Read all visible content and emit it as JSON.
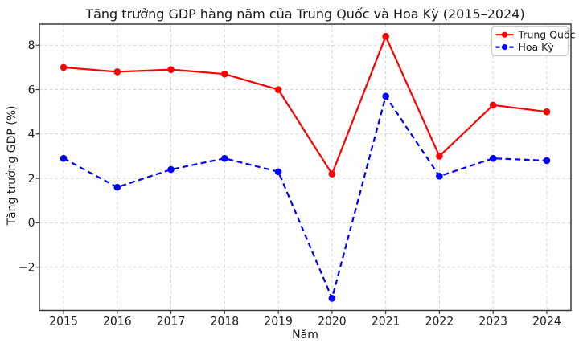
{
  "chart_data": {
    "type": "line",
    "title": "Tăng trưởng GDP hàng năm của Trung Quốc và Hoa Kỳ (2015–2024)",
    "xlabel": "Năm",
    "ylabel": "Tăng trưởng GDP (%)",
    "categories": [
      2015,
      2016,
      2017,
      2018,
      2019,
      2020,
      2021,
      2022,
      2023,
      2024
    ],
    "series": [
      {
        "name": "Trung Quốc",
        "color": "#ff0000",
        "line_style": "solid",
        "marker": "circle",
        "values": [
          7.0,
          6.8,
          6.9,
          6.7,
          6.0,
          2.2,
          8.4,
          3.0,
          5.3,
          5.0
        ]
      },
      {
        "name": "Hoa Kỳ",
        "color": "#0000ff",
        "line_style": "dashed",
        "marker": "circle",
        "values": [
          2.9,
          1.6,
          2.4,
          2.9,
          2.3,
          -3.4,
          5.7,
          2.1,
          2.9,
          2.8
        ]
      }
    ],
    "yticks": [
      -2,
      0,
      2,
      4,
      6,
      8
    ],
    "ylim": [
      -3.95,
      8.95
    ],
    "xlim": [
      2014.55,
      2024.45
    ],
    "grid": true,
    "grid_style": "dashed",
    "legend_position": "upper right",
    "colors": {
      "grid": "#d4d4d4",
      "spine": "#3a3a3a",
      "tick_text": "#1a1a1a",
      "legend_border": "#cccccc",
      "background": "#ffffff"
    }
  }
}
